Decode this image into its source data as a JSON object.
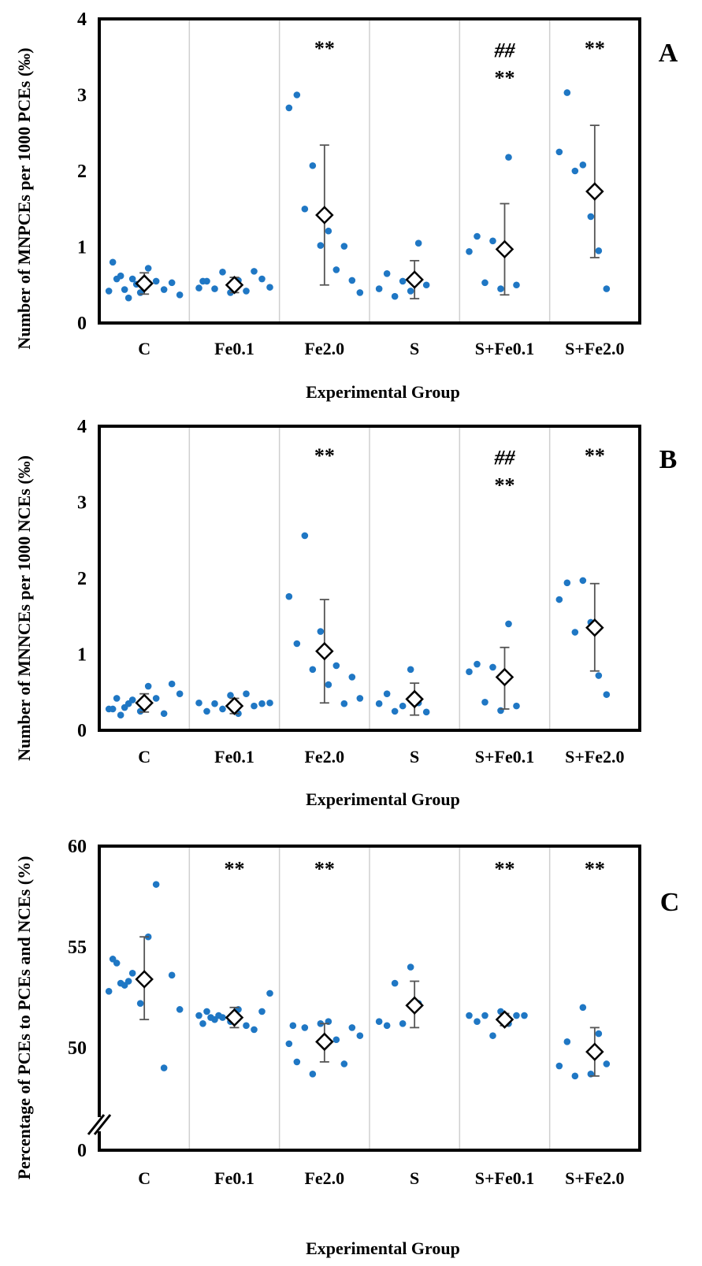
{
  "colors": {
    "point": "#1f77c4",
    "mean_fill": "#ffffff",
    "mean_stroke": "#000000",
    "frame": "#000000",
    "divider": "#cfcfcf",
    "errorbar": "#555555"
  },
  "chart_data": [
    {
      "panel": "A",
      "type": "scatter",
      "ylabel": "Number of MNPCEs per 1000 PCEs (‰)",
      "xlabel": "Experimental Group",
      "categories": [
        "C",
        "Fe0.1",
        "Fe2.0",
        "S",
        "S+Fe0.1",
        "S+Fe2.0"
      ],
      "ylim": [
        0,
        4
      ],
      "yticks": [
        "0",
        "1",
        "2",
        "3",
        "4"
      ],
      "grid": false,
      "series": [
        {
          "values": [
            [
              0.42,
              0.58,
              0.44,
              0.58,
              0.4,
              0.72,
              0.55,
              0.44,
              0.53,
              0.37,
              0.8,
              0.62,
              0.33,
              0.51
            ],
            [
              0.46,
              0.55,
              0.45,
              0.67,
              0.4,
              0.56,
              0.42,
              0.68,
              0.58,
              0.47,
              0.55
            ],
            [
              2.83,
              3.0,
              1.5,
              2.07,
              1.02,
              1.21,
              0.7,
              1.01,
              0.56,
              0.4
            ],
            [
              0.45,
              0.65,
              0.35,
              0.55,
              0.42,
              1.05,
              0.5
            ],
            [
              0.94,
              1.14,
              0.53,
              1.08,
              0.45,
              2.18,
              0.5
            ],
            [
              2.25,
              3.03,
              2.0,
              2.08,
              1.4,
              0.95,
              0.45
            ]
          ]
        }
      ],
      "means": [
        0.52,
        0.5,
        1.42,
        0.57,
        0.97,
        1.73
      ],
      "sd_low": [
        0.38,
        0.4,
        0.5,
        0.32,
        0.37,
        0.86
      ],
      "sd_high": [
        0.66,
        0.6,
        2.34,
        0.82,
        1.57,
        2.6
      ],
      "annotations": [
        {
          "group": "Fe2.0",
          "text": "**",
          "y": 3.65
        },
        {
          "group": "S+Fe0.1",
          "text": "##",
          "y": 3.62
        },
        {
          "group": "S+Fe0.1",
          "text": "**",
          "y": 3.26
        },
        {
          "group": "S+Fe2.0",
          "text": "**",
          "y": 3.65
        }
      ],
      "panel_label": "A"
    },
    {
      "panel": "B",
      "type": "scatter",
      "ylabel": "Number of MNNCEs per 1000 NCEs (‰)",
      "xlabel": "Experimental Group",
      "categories": [
        "C",
        "Fe0.1",
        "Fe2.0",
        "S",
        "S+Fe0.1",
        "S+Fe2.0"
      ],
      "ylim": [
        0,
        4
      ],
      "yticks": [
        "0",
        "1",
        "2",
        "3",
        "4"
      ],
      "grid": false,
      "series": [
        {
          "values": [
            [
              0.28,
              0.42,
              0.3,
              0.4,
              0.25,
              0.58,
              0.42,
              0.22,
              0.61,
              0.48,
              0.28,
              0.2,
              0.35
            ],
            [
              0.36,
              0.25,
              0.35,
              0.28,
              0.46,
              0.22,
              0.48,
              0.32,
              0.35,
              0.36
            ],
            [
              1.76,
              1.14,
              2.56,
              0.8,
              1.3,
              0.6,
              0.85,
              0.35,
              0.7,
              0.42
            ],
            [
              0.35,
              0.48,
              0.25,
              0.32,
              0.8,
              0.36,
              0.24
            ],
            [
              0.77,
              0.87,
              0.37,
              0.83,
              0.26,
              1.4,
              0.32
            ],
            [
              1.72,
              1.94,
              1.29,
              1.97,
              1.42,
              0.72,
              0.47
            ]
          ]
        }
      ],
      "means": [
        0.36,
        0.32,
        1.04,
        0.41,
        0.7,
        1.35
      ],
      "sd_low": [
        0.24,
        0.22,
        0.36,
        0.2,
        0.28,
        0.78
      ],
      "sd_high": [
        0.48,
        0.42,
        1.72,
        0.62,
        1.09,
        1.93
      ],
      "annotations": [
        {
          "group": "Fe2.0",
          "text": "**",
          "y": 3.65
        },
        {
          "group": "S+Fe0.1",
          "text": "##",
          "y": 3.62
        },
        {
          "group": "S+Fe0.1",
          "text": "**",
          "y": 3.26
        },
        {
          "group": "S+Fe2.0",
          "text": "**",
          "y": 3.65
        }
      ],
      "panel_label": "B"
    },
    {
      "panel": "C",
      "type": "scatter",
      "ylabel": "Percentage of PCEs to PCEs and NCEs (%)",
      "xlabel": "Experimental Group",
      "categories": [
        "C",
        "Fe0.1",
        "Fe2.0",
        "S",
        "S+Fe0.1",
        "S+Fe2.0"
      ],
      "ylim": [
        0,
        60
      ],
      "axis_break": true,
      "yticks": [
        "0",
        "50",
        "55",
        "60"
      ],
      "grid": false,
      "series": [
        {
          "values": [
            [
              52.8,
              54.2,
              53.1,
              53.7,
              52.2,
              55.5,
              58.1,
              49.0,
              53.6,
              51.9,
              54.4,
              53.2,
              53.3
            ],
            [
              51.6,
              51.8,
              51.4,
              51.5,
              51.3,
              51.9,
              51.1,
              50.9,
              51.8,
              52.7,
              51.2,
              51.5,
              51.6
            ],
            [
              50.2,
              49.3,
              51.0,
              48.7,
              51.2,
              51.3,
              50.4,
              49.2,
              51.0,
              50.6,
              51.1
            ],
            [
              51.3,
              51.1,
              53.2,
              51.2,
              54.0,
              52.2
            ],
            [
              51.6,
              51.3,
              51.6,
              50.6,
              51.8,
              51.2,
              51.6,
              51.6
            ],
            [
              49.1,
              50.3,
              48.6,
              52.0,
              48.7,
              50.7,
              49.2
            ]
          ]
        }
      ],
      "means": [
        53.4,
        51.5,
        50.3,
        52.1,
        51.4,
        49.8
      ],
      "sd_low": [
        51.4,
        51.0,
        49.3,
        51.0,
        51.1,
        48.6
      ],
      "sd_high": [
        55.5,
        52.0,
        51.2,
        53.3,
        51.7,
        51.0
      ],
      "annotations": [
        {
          "group": "Fe0.1",
          "text": "**",
          "y": 59.0
        },
        {
          "group": "Fe2.0",
          "text": "**",
          "y": 59.0
        },
        {
          "group": "S+Fe0.1",
          "text": "**",
          "y": 59.0
        },
        {
          "group": "S+Fe2.0",
          "text": "**",
          "y": 59.0
        }
      ],
      "panel_label": "C"
    }
  ]
}
